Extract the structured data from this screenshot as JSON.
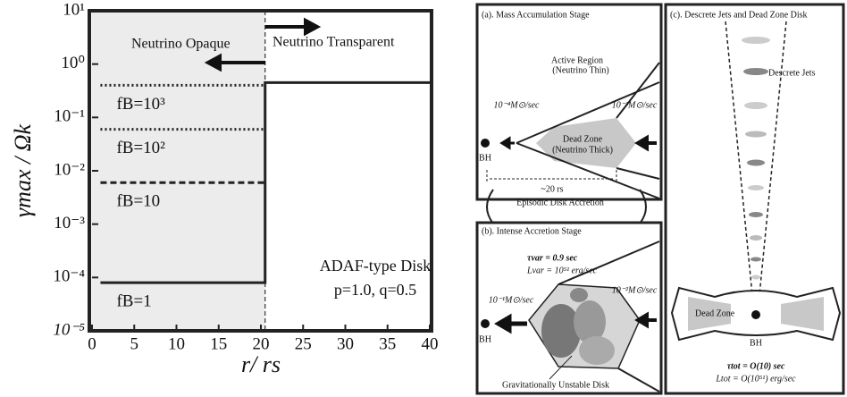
{
  "chart_data": {
    "type": "line",
    "xlabel": "r/ rs",
    "ylabel": "γmax / Ωk",
    "xlim": [
      0,
      40
    ],
    "xticks": [
      0,
      5,
      10,
      15,
      20,
      25,
      30,
      35,
      40
    ],
    "ylim": [
      1e-05,
      10
    ],
    "log_y": true,
    "yticks": [
      {
        "value": 1e-05,
        "label": "10⁻⁵"
      },
      {
        "value": 0.0001,
        "label": "10⁻⁴"
      },
      {
        "value": 0.001,
        "label": "10⁻³"
      },
      {
        "value": 0.01,
        "label": "10⁻²"
      },
      {
        "value": 0.1,
        "label": "10⁻¹"
      },
      {
        "value": 1,
        "label": "10⁰"
      },
      {
        "value": 10,
        "label": "10¹"
      }
    ],
    "boundary_x": 20.5,
    "series": [
      {
        "name": "fB=1",
        "color": "#222222",
        "dash": "solid",
        "x": [
          1,
          20.5,
          20.5,
          40
        ],
        "values": [
          8e-05,
          8e-05,
          0.45,
          0.45
        ]
      },
      {
        "name": "fB=10",
        "color": "#222222",
        "dash": "dashed",
        "x": [
          1,
          20.5
        ],
        "values": [
          0.006,
          0.006
        ]
      },
      {
        "name": "fB=10²",
        "color": "#222222",
        "dash": "dotted",
        "x": [
          1,
          20.5
        ],
        "values": [
          0.06,
          0.06
        ]
      },
      {
        "name": "fB=10³",
        "color": "#222222",
        "dash": "dotted",
        "x": [
          1,
          20.5
        ],
        "values": [
          0.4,
          0.4
        ]
      }
    ],
    "annotations": [
      "Neutrino Opaque",
      "Neutrino Transparent",
      "ADAF-type Disk",
      "p=1.0, q=0.5"
    ]
  },
  "diagram": {
    "panel_a": {
      "title": "(a). Mass Accumulation Stage",
      "active": "Active Region",
      "active_sub": "(Neutrino Thin)",
      "rate_in": "10⁻⁴M⊙/sec",
      "rate_out": "10⁻²M⊙/sec",
      "dead": "Dead Zone",
      "dead_sub": "(Neutrino Thick)",
      "bh": "BH",
      "size": "~20 rs"
    },
    "link": "Episodic Disk Accretion",
    "panel_b": {
      "title": "(b). Intense Accretion Stage",
      "tau": "τvar = 0.9 sec",
      "lum": "Lvar = 10⁵¹ erg/sec",
      "rate_in": "10⁻¹M⊙/sec",
      "rate_out": "10⁻²M⊙/sec",
      "bh": "BH",
      "caption": "Gravitationally Unstable Disk"
    },
    "panel_c": {
      "title": "(c). Descrete Jets and Dead Zone Disk",
      "jets": "Descrete Jets",
      "dead": "Dead Zone",
      "bh": "BH",
      "tau": "τtot = O(10) sec",
      "lum": "Ltot = O(10⁵¹) erg/sec"
    }
  }
}
